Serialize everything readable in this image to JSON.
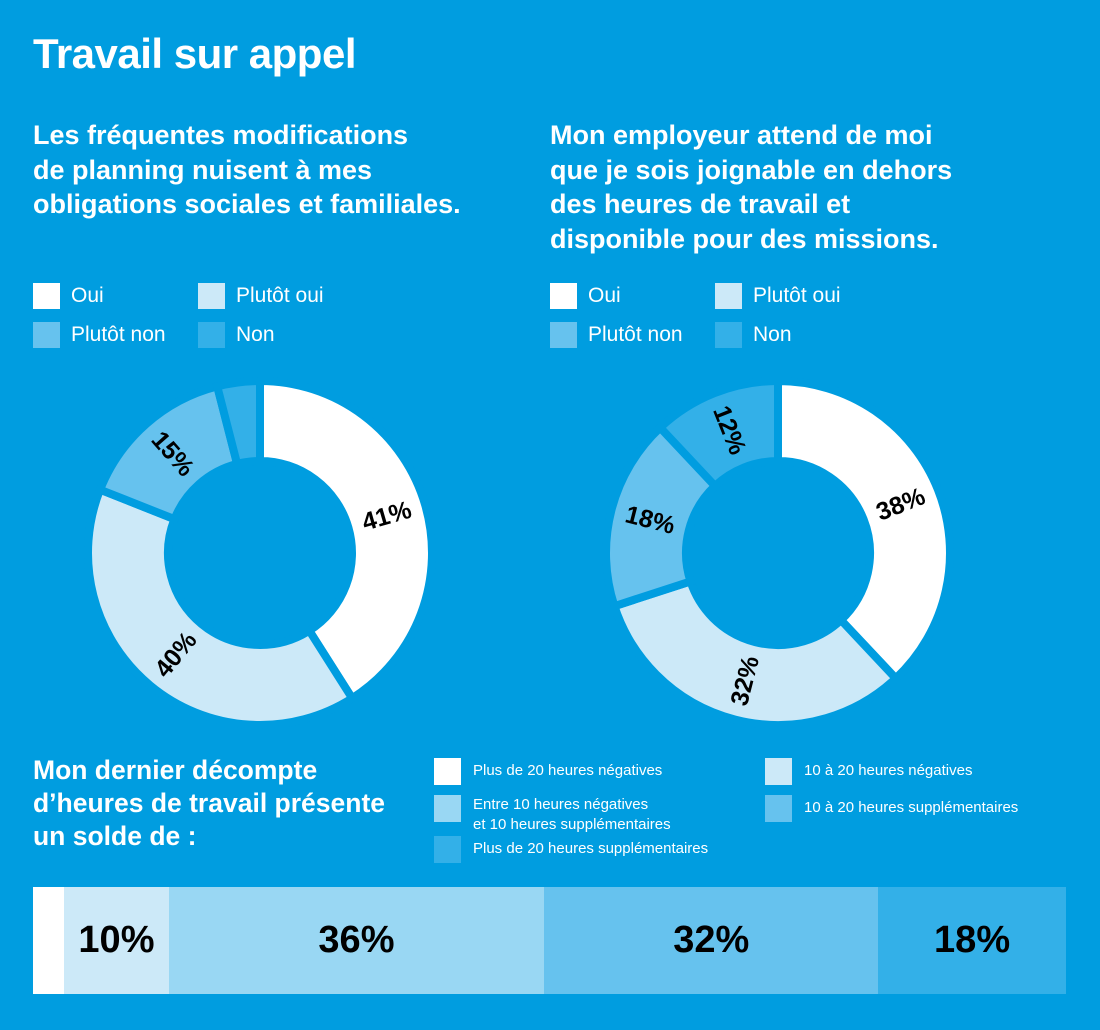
{
  "title": "Travail sur appel",
  "colors": {
    "background": "#009de0",
    "oui": "#ffffff",
    "plutot_oui": "#cce9f8",
    "plutot_non": "#66c2ee",
    "non": "#33b0e8",
    "bar_neg20": "#ffffff",
    "bar_neg10_20": "#cce9f8",
    "bar_pm10": "#99d7f3",
    "bar_pos10_20": "#66c2ee",
    "bar_pos20": "#33b0e8"
  },
  "chart_data": [
    {
      "type": "pie",
      "title": "Les fréquentes modifications\nde planning nuisent à mes\nobligations sociales et familiales.",
      "legend": [
        "Oui",
        "Plutôt oui",
        "Plutôt non",
        "Non"
      ],
      "categories": [
        "Oui",
        "Plutôt oui",
        "Plutôt non",
        "Non"
      ],
      "values": [
        41,
        40,
        15,
        4
      ],
      "labels": [
        "41%",
        "40%",
        "15%",
        ""
      ]
    },
    {
      "type": "pie",
      "title": "Mon employeur attend de moi\nque je sois joignable en dehors\ndes heures de travail et\ndisponible pour des missions.",
      "legend": [
        "Oui",
        "Plutôt oui",
        "Plutôt non",
        "Non"
      ],
      "categories": [
        "Oui",
        "Plutôt oui",
        "Plutôt non",
        "Non"
      ],
      "values": [
        38,
        32,
        18,
        12
      ],
      "labels": [
        "38%",
        "32%",
        "18%",
        "12%"
      ]
    },
    {
      "type": "bar",
      "orientation": "horizontal-stacked",
      "title": "Mon dernier décompte\nd’heures de travail présente\nun solde de :",
      "legend": [
        "Plus de 20 heures négatives",
        "10 à 20 heures négatives",
        "Entre 10 heures négatives\net 10 heures supplémentaires",
        "10 à 20 heures supplémentaires",
        "Plus de 20 heures supplémentaires"
      ],
      "categories": [
        "Plus de 20 heures négatives",
        "10 à 20 heures négatives",
        "Entre 10 heures négatives et 10 heures supplémentaires",
        "10 à 20 heures supplémentaires",
        "Plus de 20 heures supplémentaires"
      ],
      "values": [
        3,
        10,
        36,
        32,
        18
      ],
      "labels": [
        "",
        "10%",
        "36%",
        "32%",
        "18%"
      ]
    }
  ]
}
